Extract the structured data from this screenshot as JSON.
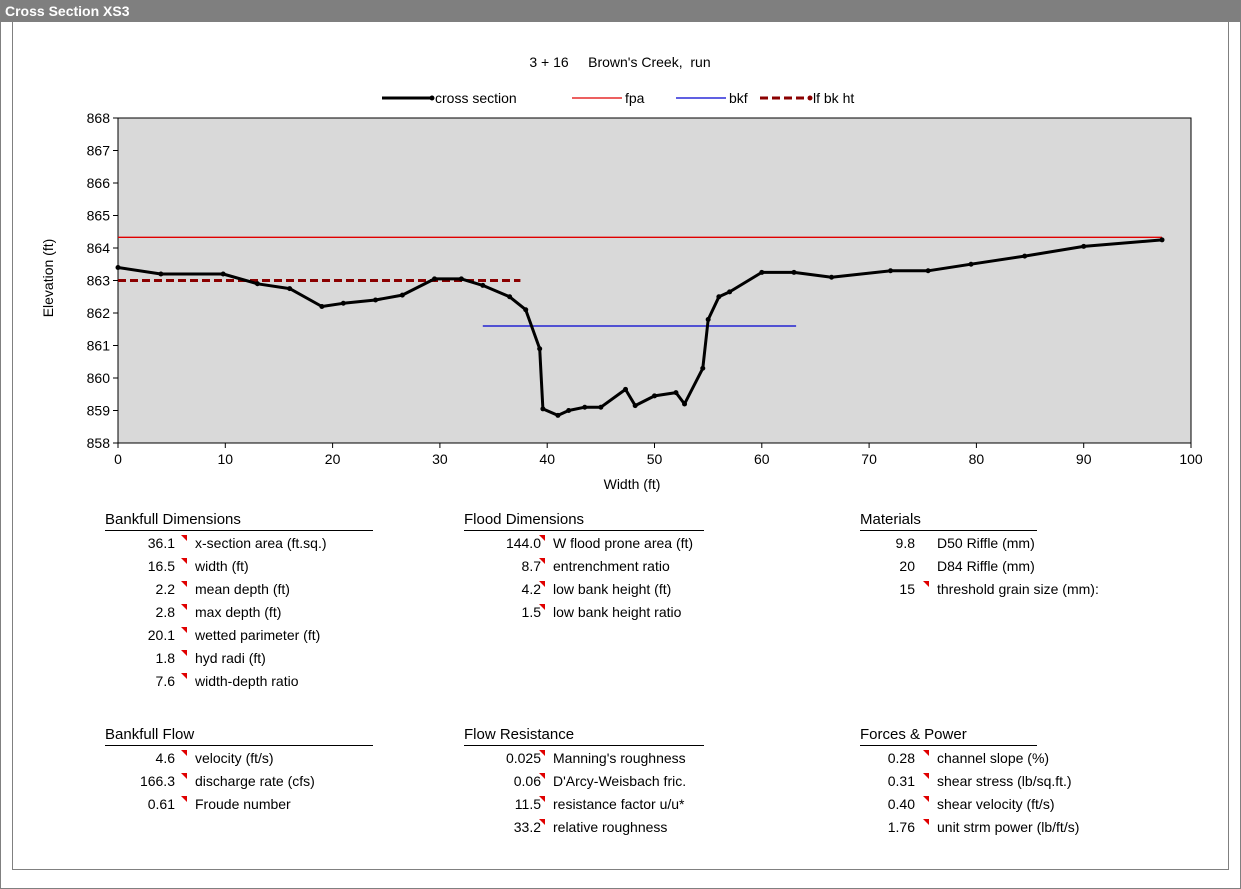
{
  "window": {
    "title": "Cross Section  XS3"
  },
  "chart_data": {
    "type": "line",
    "title": "3 + 16     Brown's Creek,  run",
    "xlabel": "Width (ft)",
    "ylabel": "Elevation (ft)",
    "xlim": [
      0,
      100
    ],
    "ylim": [
      858,
      868
    ],
    "x_ticks": [
      0,
      10,
      20,
      30,
      40,
      50,
      60,
      70,
      80,
      90,
      100
    ],
    "y_ticks": [
      858,
      859,
      860,
      861,
      862,
      863,
      864,
      865,
      866,
      867,
      868
    ],
    "grid": false,
    "legend": "top-center",
    "series": [
      {
        "name": "cross section",
        "color": "#000000",
        "style": "line-markers",
        "x": [
          0,
          4,
          9.8,
          13,
          16,
          19,
          21,
          24,
          26.5,
          29.5,
          32,
          34,
          36.5,
          38,
          39.3,
          39.6,
          41,
          42,
          43.5,
          45,
          47.3,
          48.2,
          50,
          52,
          52.8,
          54.5,
          55,
          56,
          57,
          60,
          63,
          66.5,
          72,
          75.5,
          79.5,
          84.5,
          90,
          97.3
        ],
        "y": [
          863.4,
          863.2,
          863.2,
          862.9,
          862.75,
          862.2,
          862.3,
          862.4,
          862.55,
          863.05,
          863.05,
          862.85,
          862.5,
          862.1,
          860.9,
          859.05,
          858.85,
          859.0,
          859.1,
          859.1,
          859.65,
          859.15,
          859.45,
          859.55,
          859.2,
          860.3,
          861.8,
          862.5,
          862.65,
          863.25,
          863.25,
          863.1,
          863.3,
          863.3,
          863.5,
          863.75,
          864.05,
          864.25
        ]
      },
      {
        "name": "fpa",
        "color": "#e00000",
        "style": "line",
        "x": [
          0,
          97.3
        ],
        "y": [
          864.33,
          864.33
        ]
      },
      {
        "name": "bkf",
        "color": "#0000d0",
        "style": "line",
        "x": [
          34,
          63.2
        ],
        "y": [
          861.6,
          861.6
        ]
      },
      {
        "name": "lf bk ht",
        "color": "#8b0000",
        "style": "dashed",
        "x": [
          0,
          37.5
        ],
        "y": [
          863.0,
          863.0
        ]
      }
    ]
  },
  "tables": {
    "bankfull_dimensions": {
      "title": "Bankfull Dimensions",
      "rows": [
        {
          "value": "36.1",
          "label": "x-section area (ft.sq.)"
        },
        {
          "value": "16.5",
          "label": "width (ft)"
        },
        {
          "value": "2.2",
          "label": "mean depth (ft)"
        },
        {
          "value": "2.8",
          "label": "max depth (ft)"
        },
        {
          "value": "20.1",
          "label": "wetted parimeter (ft)"
        },
        {
          "value": "1.8",
          "label": "hyd radi (ft)"
        },
        {
          "value": "7.6",
          "label": "width-depth ratio"
        }
      ]
    },
    "flood_dimensions": {
      "title": "Flood Dimensions",
      "rows": [
        {
          "value": "144.0",
          "label": "W flood prone area (ft)"
        },
        {
          "value": "8.7",
          "label": "entrenchment ratio"
        },
        {
          "value": "4.2",
          "label": "low bank height (ft)"
        },
        {
          "value": "1.5",
          "label": "low bank height ratio"
        }
      ]
    },
    "materials": {
      "title": "Materials",
      "rows": [
        {
          "value": "9.8",
          "label": "D50 Riffle (mm)",
          "flag": false
        },
        {
          "value": "20",
          "label": "D84 Riffle (mm)",
          "flag": false
        },
        {
          "value": "15",
          "label": "threshold grain size (mm):",
          "flag": true
        }
      ]
    },
    "bankfull_flow": {
      "title": "Bankfull Flow",
      "rows": [
        {
          "value": "4.6",
          "label": "velocity (ft/s)"
        },
        {
          "value": "166.3",
          "label": "discharge rate (cfs)"
        },
        {
          "value": "0.61",
          "label": "Froude number"
        }
      ]
    },
    "flow_resistance": {
      "title": "Flow Resistance",
      "rows": [
        {
          "value": "0.025",
          "label": "Manning's roughness"
        },
        {
          "value": "0.06",
          "label": "D'Arcy-Weisbach fric."
        },
        {
          "value": "11.5",
          "label": "resistance factor u/u*"
        },
        {
          "value": "33.2",
          "label": "relative roughness"
        }
      ]
    },
    "forces_power": {
      "title": "Forces & Power",
      "rows": [
        {
          "value": "0.28",
          "label": "channel slope (%)"
        },
        {
          "value": "0.31",
          "label": "shear stress (lb/sq.ft.)"
        },
        {
          "value": "0.40",
          "label": "shear velocity (ft/s)"
        },
        {
          "value": "1.76",
          "label": "unit strm power (lb/ft/s)"
        }
      ]
    }
  }
}
